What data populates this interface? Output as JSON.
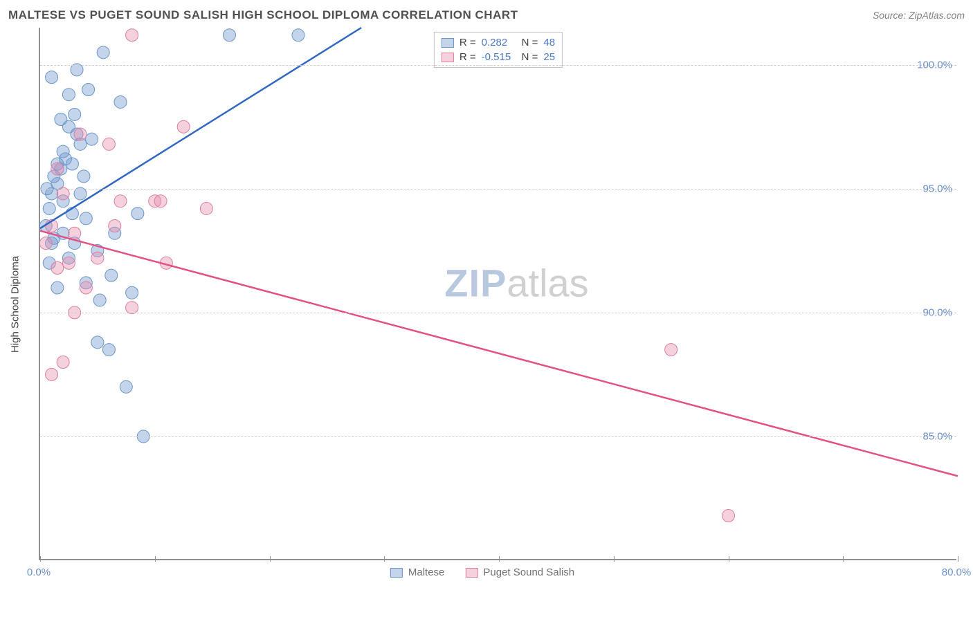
{
  "title": "MALTESE VS PUGET SOUND SALISH HIGH SCHOOL DIPLOMA CORRELATION CHART",
  "source": "Source: ZipAtlas.com",
  "watermark": {
    "part1": "ZIP",
    "part2": "atlas"
  },
  "chart": {
    "type": "scatter",
    "ylabel": "High School Diploma",
    "xlim": [
      0,
      80
    ],
    "ylim": [
      80,
      101.5
    ],
    "xticks": [
      0,
      20,
      40,
      60,
      80
    ],
    "xtick_labels": [
      "0.0%",
      "",
      "",
      "",
      "80.0%"
    ],
    "xtick_positions_minor": [
      10,
      30,
      50,
      70
    ],
    "yticks": [
      85,
      90,
      95,
      100
    ],
    "ytick_labels": [
      "85.0%",
      "90.0%",
      "95.0%",
      "100.0%"
    ],
    "grid_color": "#d8d8d8",
    "background_color": "#ffffff",
    "series": [
      {
        "name": "Maltese",
        "color_fill": "rgba(122,160,211,0.45)",
        "color_stroke": "#6a95c9",
        "r": "0.282",
        "n": "48",
        "regression": {
          "x1": 0,
          "y1": 93.4,
          "x2": 28,
          "y2": 101.5,
          "color": "#2f66c4",
          "width": 2.5
        },
        "points": [
          [
            0.5,
            93.5
          ],
          [
            0.8,
            94.2
          ],
          [
            1.0,
            94.8
          ],
          [
            1.2,
            93.0
          ],
          [
            1.5,
            95.2
          ],
          [
            1.8,
            95.8
          ],
          [
            2.0,
            94.5
          ],
          [
            2.2,
            96.2
          ],
          [
            2.5,
            97.5
          ],
          [
            2.8,
            96.0
          ],
          [
            3.0,
            98.0
          ],
          [
            3.2,
            97.2
          ],
          [
            3.5,
            96.8
          ],
          [
            3.8,
            95.5
          ],
          [
            4.0,
            93.8
          ],
          [
            4.2,
            99.0
          ],
          [
            4.5,
            97.0
          ],
          [
            5.0,
            92.5
          ],
          [
            5.2,
            90.5
          ],
          [
            5.5,
            100.5
          ],
          [
            6.0,
            88.5
          ],
          [
            6.2,
            91.5
          ],
          [
            6.5,
            93.2
          ],
          [
            7.0,
            98.5
          ],
          [
            7.5,
            87.0
          ],
          [
            8.0,
            90.8
          ],
          [
            8.5,
            94.0
          ],
          [
            9.0,
            85.0
          ],
          [
            3.2,
            99.8
          ],
          [
            1.0,
            92.8
          ],
          [
            2.0,
            93.2
          ],
          [
            1.5,
            91.0
          ],
          [
            0.8,
            92.0
          ],
          [
            4.0,
            91.2
          ],
          [
            2.5,
            92.2
          ],
          [
            3.0,
            92.8
          ],
          [
            5.0,
            88.8
          ],
          [
            1.2,
            95.5
          ],
          [
            2.8,
            94.0
          ],
          [
            16.5,
            101.2
          ],
          [
            22.5,
            101.2
          ],
          [
            1.0,
            99.5
          ],
          [
            3.5,
            94.8
          ],
          [
            2.0,
            96.5
          ],
          [
            1.8,
            97.8
          ],
          [
            2.5,
            98.8
          ],
          [
            1.5,
            96.0
          ],
          [
            0.6,
            95.0
          ]
        ]
      },
      {
        "name": "Puget Sound Salish",
        "color_fill": "rgba(231,140,172,0.40)",
        "color_stroke": "#de7da0",
        "r": "-0.515",
        "n": "25",
        "regression": {
          "x1": 0,
          "y1": 93.3,
          "x2": 80,
          "y2": 83.4,
          "color": "#e35183",
          "width": 2.5
        },
        "points": [
          [
            0.5,
            92.8
          ],
          [
            1.0,
            93.5
          ],
          [
            1.5,
            91.8
          ],
          [
            2.0,
            94.8
          ],
          [
            2.5,
            92.0
          ],
          [
            3.0,
            93.2
          ],
          [
            3.5,
            97.2
          ],
          [
            4.0,
            91.0
          ],
          [
            5.0,
            92.2
          ],
          [
            6.0,
            96.8
          ],
          [
            6.5,
            93.5
          ],
          [
            7.0,
            94.5
          ],
          [
            8.0,
            90.2
          ],
          [
            10.0,
            94.5
          ],
          [
            10.5,
            94.5
          ],
          [
            11.0,
            92.0
          ],
          [
            12.5,
            97.5
          ],
          [
            14.5,
            94.2
          ],
          [
            8.0,
            101.2
          ],
          [
            2.0,
            88.0
          ],
          [
            1.0,
            87.5
          ],
          [
            3.0,
            90.0
          ],
          [
            55.0,
            88.5
          ],
          [
            60.0,
            81.8
          ],
          [
            1.5,
            95.8
          ]
        ]
      }
    ]
  },
  "bottom_legend": [
    {
      "label": "Maltese",
      "fill": "rgba(122,160,211,0.45)",
      "stroke": "#6a95c9"
    },
    {
      "label": "Puget Sound Salish",
      "fill": "rgba(231,140,172,0.40)",
      "stroke": "#de7da0"
    }
  ]
}
